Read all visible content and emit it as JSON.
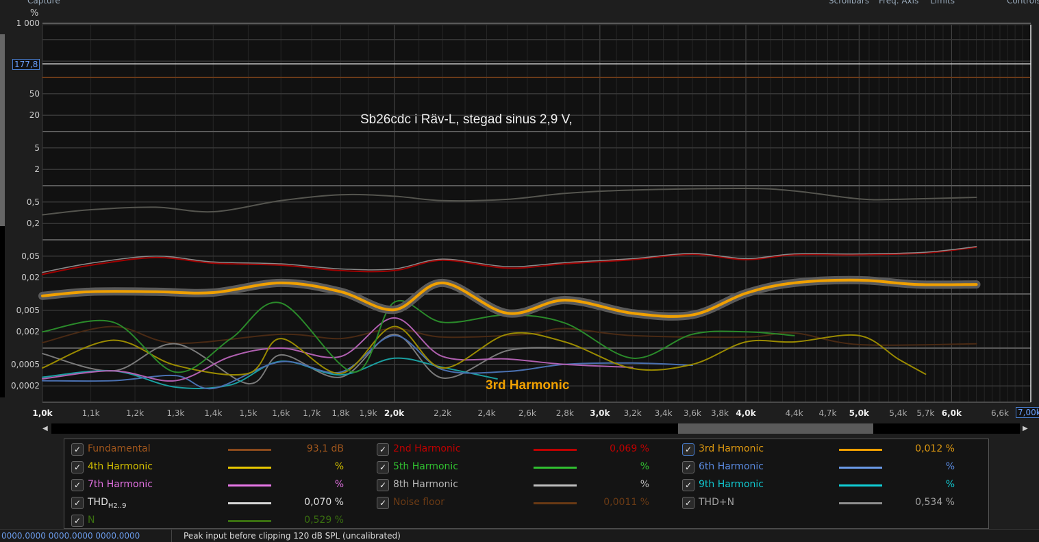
{
  "toolbar": {
    "capture": "Capture",
    "scrollbars": "Scrollbars",
    "freq_axis": "Freq. Axis",
    "limits": "Limits",
    "controls": "Controls"
  },
  "chart_data": {
    "type": "line",
    "title": "Sb26cdc i Räv-L, stegad sinus 2,9 V,",
    "ylabel": "%",
    "yscale": "log",
    "xscale": "log",
    "ylim": [
      0.0001,
      1000
    ],
    "xlim": [
      1000,
      7000
    ],
    "grid": true,
    "y_ticks": [
      "1 000",
      "50",
      "20",
      "5",
      "2",
      "0,5",
      "0,2",
      "0,05",
      "0,02",
      "0,005",
      "0,002",
      "0,0005",
      "0,0002"
    ],
    "y_tick_values": [
      1000,
      50,
      20,
      5,
      2,
      0.5,
      0.2,
      0.05,
      0.02,
      0.005,
      0.002,
      0.0005,
      0.0002
    ],
    "x_ticks": [
      "1,0k",
      "1,1k",
      "1,2k",
      "1,3k",
      "1,4k",
      "1,5k",
      "1,6k",
      "1,7k",
      "1,8k",
      "1,9k",
      "2,0k",
      "2,2k",
      "2,4k",
      "2,6k",
      "2,8k",
      "3,0k",
      "3,2k",
      "3,4k",
      "3,6k",
      "3,8k",
      "4,0k",
      "4,4k",
      "4,7k",
      "5,0k",
      "5,4k",
      "5,7k",
      "6,0k",
      "6,6k"
    ],
    "x_tick_values": [
      1000,
      1100,
      1200,
      1300,
      1400,
      1500,
      1600,
      1700,
      1800,
      1900,
      2000,
      2200,
      2400,
      2600,
      2800,
      3000,
      3200,
      3400,
      3600,
      3800,
      4000,
      4400,
      4700,
      5000,
      5400,
      5700,
      6000,
      6600
    ],
    "x_major": [
      "1,0k",
      "2,0k",
      "3,0k",
      "4,0k",
      "5,0k",
      "6,0k"
    ],
    "y_cursor": {
      "label": "177,8",
      "value": 177.8
    },
    "x_cursor": {
      "label": "7,00k",
      "value": 7000
    },
    "annotation": "3rd Harmonic",
    "series": [
      {
        "name": "THD+N",
        "color": "#55554f",
        "width": 2,
        "points": [
          [
            1000,
            0.29
          ],
          [
            1100,
            0.36
          ],
          [
            1250,
            0.4
          ],
          [
            1400,
            0.33
          ],
          [
            1600,
            0.53
          ],
          [
            1800,
            0.68
          ],
          [
            2000,
            0.64
          ],
          [
            2200,
            0.53
          ],
          [
            2500,
            0.56
          ],
          [
            2800,
            0.72
          ],
          [
            3200,
            0.83
          ],
          [
            4000,
            0.89
          ],
          [
            4400,
            0.8
          ],
          [
            5000,
            0.57
          ],
          [
            5400,
            0.56
          ],
          [
            6300,
            0.61
          ]
        ]
      },
      {
        "name": "2nd Harmonic",
        "color": "#a00000",
        "width": 2,
        "points": [
          [
            1000,
            0.023
          ],
          [
            1100,
            0.034
          ],
          [
            1250,
            0.047
          ],
          [
            1400,
            0.037
          ],
          [
            1600,
            0.034
          ],
          [
            1800,
            0.027
          ],
          [
            2000,
            0.027
          ],
          [
            2200,
            0.042
          ],
          [
            2500,
            0.03
          ],
          [
            2800,
            0.036
          ],
          [
            3200,
            0.043
          ],
          [
            3600,
            0.054
          ],
          [
            4000,
            0.043
          ],
          [
            4400,
            0.053
          ],
          [
            5000,
            0.053
          ],
          [
            5700,
            0.057
          ],
          [
            6300,
            0.073
          ]
        ]
      },
      {
        "name": "THD",
        "color": "#8a8a8a",
        "width": 1.5,
        "points": [
          [
            1000,
            0.025
          ],
          [
            1100,
            0.037
          ],
          [
            1250,
            0.05
          ],
          [
            1400,
            0.039
          ],
          [
            1600,
            0.036
          ],
          [
            1800,
            0.029
          ],
          [
            2000,
            0.029
          ],
          [
            2200,
            0.044
          ],
          [
            2500,
            0.032
          ],
          [
            2800,
            0.038
          ],
          [
            3200,
            0.045
          ],
          [
            3600,
            0.056
          ],
          [
            4000,
            0.045
          ],
          [
            4400,
            0.055
          ],
          [
            5000,
            0.055
          ],
          [
            5700,
            0.059
          ],
          [
            6300,
            0.075
          ]
        ]
      },
      {
        "name": "Noise floor",
        "color": "#4a2a14",
        "width": 2,
        "points": [
          [
            1000,
            0.00126
          ],
          [
            1150,
            0.0025
          ],
          [
            1300,
            0.00123
          ],
          [
            1600,
            0.0018
          ],
          [
            1800,
            0.0015
          ],
          [
            2000,
            0.0023
          ],
          [
            2200,
            0.0016
          ],
          [
            2600,
            0.0018
          ],
          [
            2800,
            0.0023
          ],
          [
            3200,
            0.0017
          ],
          [
            4000,
            0.0016
          ],
          [
            4400,
            0.0019
          ],
          [
            5000,
            0.00116
          ],
          [
            6300,
            0.0012
          ]
        ]
      },
      {
        "name": "8th Harmonic",
        "color": "#7a7a7a",
        "width": 2,
        "points": [
          [
            1000,
            0.00079
          ],
          [
            1150,
            0.00038
          ],
          [
            1300,
            0.0012
          ],
          [
            1500,
            0.00022
          ],
          [
            1600,
            0.00075
          ],
          [
            1800,
            0.00029
          ],
          [
            2000,
            0.0018
          ],
          [
            2200,
            0.00028
          ],
          [
            2500,
            0.0009
          ],
          [
            2800,
            0.001
          ]
        ]
      },
      {
        "name": "9th Harmonic",
        "color": "#1a9fa0",
        "width": 2,
        "points": [
          [
            1000,
            0.00029
          ],
          [
            1150,
            0.00038
          ],
          [
            1300,
            0.00019
          ],
          [
            1450,
            0.00021
          ],
          [
            1600,
            0.00057
          ],
          [
            1800,
            0.00032
          ],
          [
            2000,
            0.00065
          ],
          [
            2200,
            0.00044
          ],
          [
            2450,
            0.00027
          ]
        ]
      },
      {
        "name": "6th Harmonic",
        "color": "#4a70b0",
        "width": 2,
        "points": [
          [
            1000,
            0.00025
          ],
          [
            1150,
            0.00025
          ],
          [
            1300,
            0.00031
          ],
          [
            1400,
            0.00018
          ],
          [
            1600,
            0.00056
          ],
          [
            1800,
            0.00036
          ],
          [
            2000,
            0.0017
          ],
          [
            2200,
            0.0004
          ],
          [
            2500,
            0.00037
          ],
          [
            2800,
            0.0005
          ],
          [
            3200,
            0.00053
          ],
          [
            3600,
            0.00048
          ]
        ]
      },
      {
        "name": "7th Harmonic",
        "color": "#b060b0",
        "width": 2,
        "points": [
          [
            1000,
            0.00027
          ],
          [
            1150,
            0.00038
          ],
          [
            1300,
            0.00025
          ],
          [
            1450,
            0.0007
          ],
          [
            1600,
            0.001
          ],
          [
            1800,
            0.0007
          ],
          [
            2000,
            0.0036
          ],
          [
            2200,
            0.0007
          ],
          [
            2500,
            0.00063
          ],
          [
            2800,
            0.0005
          ],
          [
            3200,
            0.00044
          ]
        ]
      },
      {
        "name": "4th Harmonic",
        "color": "#9a8a00",
        "width": 2,
        "points": [
          [
            1000,
            0.00043
          ],
          [
            1150,
            0.0014
          ],
          [
            1300,
            0.00048
          ],
          [
            1500,
            0.00034
          ],
          [
            1600,
            0.0015
          ],
          [
            1800,
            0.00034
          ],
          [
            2000,
            0.0025
          ],
          [
            2200,
            0.00043
          ],
          [
            2500,
            0.0018
          ],
          [
            2800,
            0.0013
          ],
          [
            3200,
            0.00042
          ],
          [
            3600,
            0.0005
          ],
          [
            4000,
            0.0013
          ],
          [
            4400,
            0.0013
          ],
          [
            5000,
            0.0017
          ],
          [
            5400,
            0.00063
          ],
          [
            5700,
            0.00033
          ]
        ]
      },
      {
        "name": "5th Harmonic",
        "color": "#2a8a2a",
        "width": 2,
        "points": [
          [
            1000,
            0.002
          ],
          [
            1150,
            0.003
          ],
          [
            1300,
            0.00036
          ],
          [
            1450,
            0.0015
          ],
          [
            1600,
            0.0068
          ],
          [
            1850,
            0.00036
          ],
          [
            2000,
            0.007
          ],
          [
            2200,
            0.003
          ],
          [
            2500,
            0.0041
          ],
          [
            2800,
            0.0029
          ],
          [
            3200,
            0.00065
          ],
          [
            3600,
            0.0018
          ],
          [
            4000,
            0.002
          ],
          [
            4400,
            0.0017
          ]
        ]
      },
      {
        "name": "3rd Harmonic",
        "color": "#f0a000",
        "width": 4,
        "halo": true,
        "points": [
          [
            1000,
            0.0092
          ],
          [
            1100,
            0.011
          ],
          [
            1250,
            0.011
          ],
          [
            1400,
            0.0106
          ],
          [
            1600,
            0.016
          ],
          [
            1800,
            0.011
          ],
          [
            2000,
            0.0051
          ],
          [
            2200,
            0.016
          ],
          [
            2500,
            0.0044
          ],
          [
            2800,
            0.0077
          ],
          [
            3200,
            0.0044
          ],
          [
            3600,
            0.0041
          ],
          [
            4000,
            0.0103
          ],
          [
            4400,
            0.016
          ],
          [
            5000,
            0.018
          ],
          [
            5600,
            0.015
          ],
          [
            6300,
            0.015
          ]
        ]
      },
      {
        "name": "Fundamental",
        "color": "#6a3a18",
        "width": 2,
        "points": [
          [
            1000,
            100
          ],
          [
            7000,
            100
          ]
        ]
      }
    ]
  },
  "legend": {
    "items": [
      {
        "name": "Fundamental",
        "value": "93,1 dB",
        "color": "#a0561c",
        "swatch": "#8b4a1c"
      },
      {
        "name": "2nd Harmonic",
        "value": "0,069 %",
        "color": "#c00000",
        "swatch": "#c00000"
      },
      {
        "name": "3rd Harmonic",
        "value": "0,012 %",
        "color": "#e09a10",
        "swatch": "#f0a000"
      },
      {
        "name": "4th Harmonic",
        "value": "%",
        "color": "#d4c000",
        "swatch": "#e8c800"
      },
      {
        "name": "5th Harmonic",
        "value": "%",
        "color": "#30c030",
        "swatch": "#30c030"
      },
      {
        "name": "6th Harmonic",
        "value": "%",
        "color": "#5a8ae0",
        "swatch": "#6a9ae8"
      },
      {
        "name": "7th Harmonic",
        "value": "%",
        "color": "#e070e0",
        "swatch": "#e878e8"
      },
      {
        "name": "8th Harmonic",
        "value": "%",
        "color": "#b8b8b8",
        "swatch": "#c0c0c0"
      },
      {
        "name": "9th Harmonic",
        "value": "%",
        "color": "#10c8d0",
        "swatch": "#10d0d8"
      },
      {
        "name": "THD",
        "sub": "H2..9",
        "value": "0,070 %",
        "color": "#e0e0e0",
        "swatch": "#d8d8d8"
      },
      {
        "name": "Noise floor",
        "value": "0,0011 %",
        "color": "#6a3a14",
        "swatch": "#6a3a14"
      },
      {
        "name": "THD+N",
        "value": "0,534 %",
        "color": "#a0a0a0",
        "swatch": "#909090"
      },
      {
        "name": "N",
        "value": "0,529 %",
        "color": "#3a7010",
        "swatch": "#3a7010"
      }
    ]
  },
  "status": {
    "coords": "0000.0000  0000.0000  0000.0000",
    "message": "Peak input before clipping 120 dB SPL (uncalibrated)"
  }
}
